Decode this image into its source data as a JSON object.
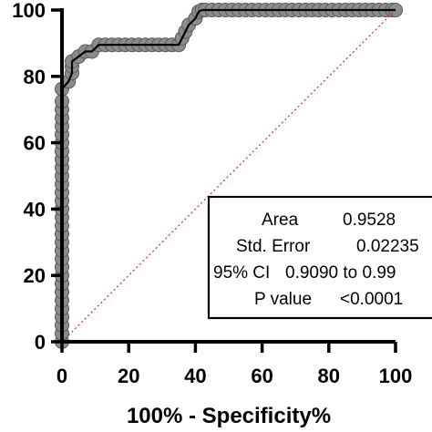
{
  "chart_data": {
    "type": "line",
    "title": "",
    "xlabel": "100% - Specificity%",
    "ylabel": "",
    "xlim": [
      0,
      100
    ],
    "ylim": [
      0,
      100
    ],
    "xticks": [
      "0",
      "20",
      "40",
      "60",
      "80",
      "100"
    ],
    "yticks": [
      "0",
      "20",
      "40",
      "60",
      "80",
      "100"
    ],
    "grid": false,
    "reference_line": {
      "name": "",
      "x": [
        0,
        100
      ],
      "y": [
        0,
        100
      ],
      "color": "#d62728",
      "style": "dotted"
    },
    "series": [
      {
        "name": "",
        "color": "#000000",
        "marker_color": "#8c8c8c",
        "x": [
          0,
          0,
          0,
          0,
          0,
          0,
          0,
          0,
          0,
          0,
          0,
          0,
          0,
          0,
          0,
          0,
          0,
          0,
          0,
          0,
          0,
          0,
          0,
          0,
          0,
          0,
          0,
          0,
          0,
          0,
          0,
          2,
          3,
          3,
          3,
          5,
          7,
          9,
          11,
          13,
          15,
          17,
          19,
          21,
          23,
          25,
          27,
          29,
          31,
          33,
          35,
          36,
          37,
          38,
          40,
          41,
          42,
          43,
          45,
          47,
          49,
          51,
          53,
          55,
          57,
          59,
          61,
          63,
          65,
          67,
          69,
          71,
          73,
          75,
          77,
          79,
          81,
          83,
          85,
          87,
          89,
          91,
          93,
          95,
          97,
          99,
          100
        ],
        "y": [
          0,
          2.5,
          5,
          7.5,
          10,
          12.5,
          15,
          17.5,
          20,
          22.5,
          25,
          27.5,
          30,
          32.5,
          35,
          37.5,
          40,
          42.5,
          45,
          47.5,
          50,
          52.5,
          55,
          57.5,
          60,
          62.5,
          65,
          67.5,
          70,
          72.5,
          76.2,
          78.5,
          81,
          83,
          84.5,
          86,
          87.5,
          87.5,
          89.5,
          89.5,
          89.5,
          89.5,
          89.5,
          89.5,
          89.5,
          89.5,
          89.5,
          89.5,
          89.5,
          89.5,
          89.5,
          91.5,
          93.5,
          95.5,
          97.5,
          99.5,
          100,
          100,
          100,
          100,
          100,
          100,
          100,
          100,
          100,
          100,
          100,
          100,
          100,
          100,
          100,
          100,
          100,
          100,
          100,
          100,
          100,
          100,
          100,
          100,
          100,
          100,
          100,
          100,
          100,
          100,
          100
        ]
      }
    ]
  },
  "stats_box": {
    "rows": [
      {
        "label": "Area",
        "value": "0.9528"
      },
      {
        "label": "Std. Error",
        "value": "0.02235"
      },
      {
        "label": "95% CI",
        "value": "0.9090 to 0.99"
      },
      {
        "label": "P value",
        "value": "<0.0001"
      }
    ]
  }
}
